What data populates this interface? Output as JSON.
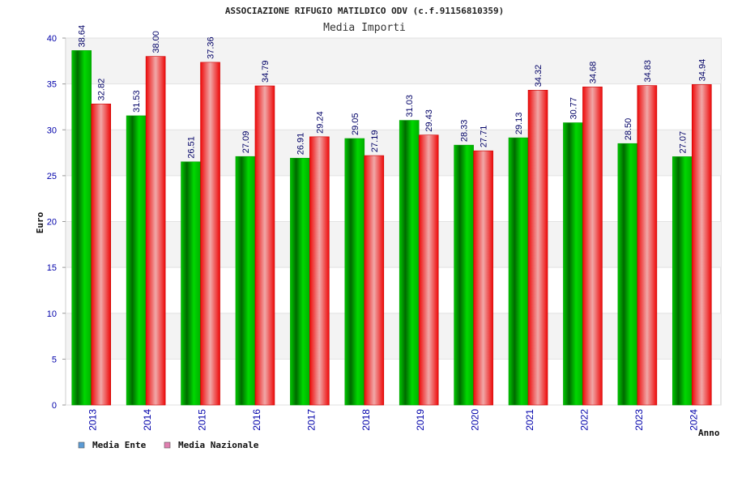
{
  "chart_data": {
    "type": "bar",
    "title": "ASSOCIAZIONE RIFUGIO MATILDICO ODV (c.f.91156810359)",
    "subtitle": "Media Importi",
    "ylabel": "Euro",
    "xlabel": "Anno",
    "ylim": [
      0,
      40
    ],
    "yticks": [
      0,
      5,
      10,
      15,
      20,
      25,
      30,
      35,
      40
    ],
    "grid": "horizontal-bands",
    "legend_position": "bottom-left",
    "categories": [
      "2013",
      "2014",
      "2015",
      "2016",
      "2017",
      "2018",
      "2019",
      "2020",
      "2021",
      "2022",
      "2023",
      "2024"
    ],
    "series": [
      {
        "name": "Media Ente",
        "color": "#00b000",
        "legend_color": "#5b9bd5",
        "values": [
          38.64,
          31.53,
          26.51,
          27.09,
          26.91,
          29.05,
          31.03,
          28.33,
          29.13,
          30.77,
          28.5,
          27.07
        ],
        "labels": [
          "38.64",
          "31.53",
          "26.51",
          "27.09",
          "26.91",
          "29.05",
          "31.03",
          "28.33",
          "29.13",
          "30.77",
          "28.50",
          "27.07"
        ]
      },
      {
        "name": "Media Nazionale",
        "color": "#ee1111",
        "legend_color": "#e07fb0",
        "values": [
          32.82,
          38.0,
          37.36,
          34.79,
          29.24,
          27.19,
          29.43,
          27.71,
          34.32,
          34.68,
          34.83,
          34.94
        ],
        "labels": [
          "32.82",
          "38.00",
          "37.36",
          "34.79",
          "29.24",
          "27.19",
          "29.43",
          "27.71",
          "34.32",
          "34.68",
          "34.83",
          "34.94"
        ]
      }
    ]
  }
}
